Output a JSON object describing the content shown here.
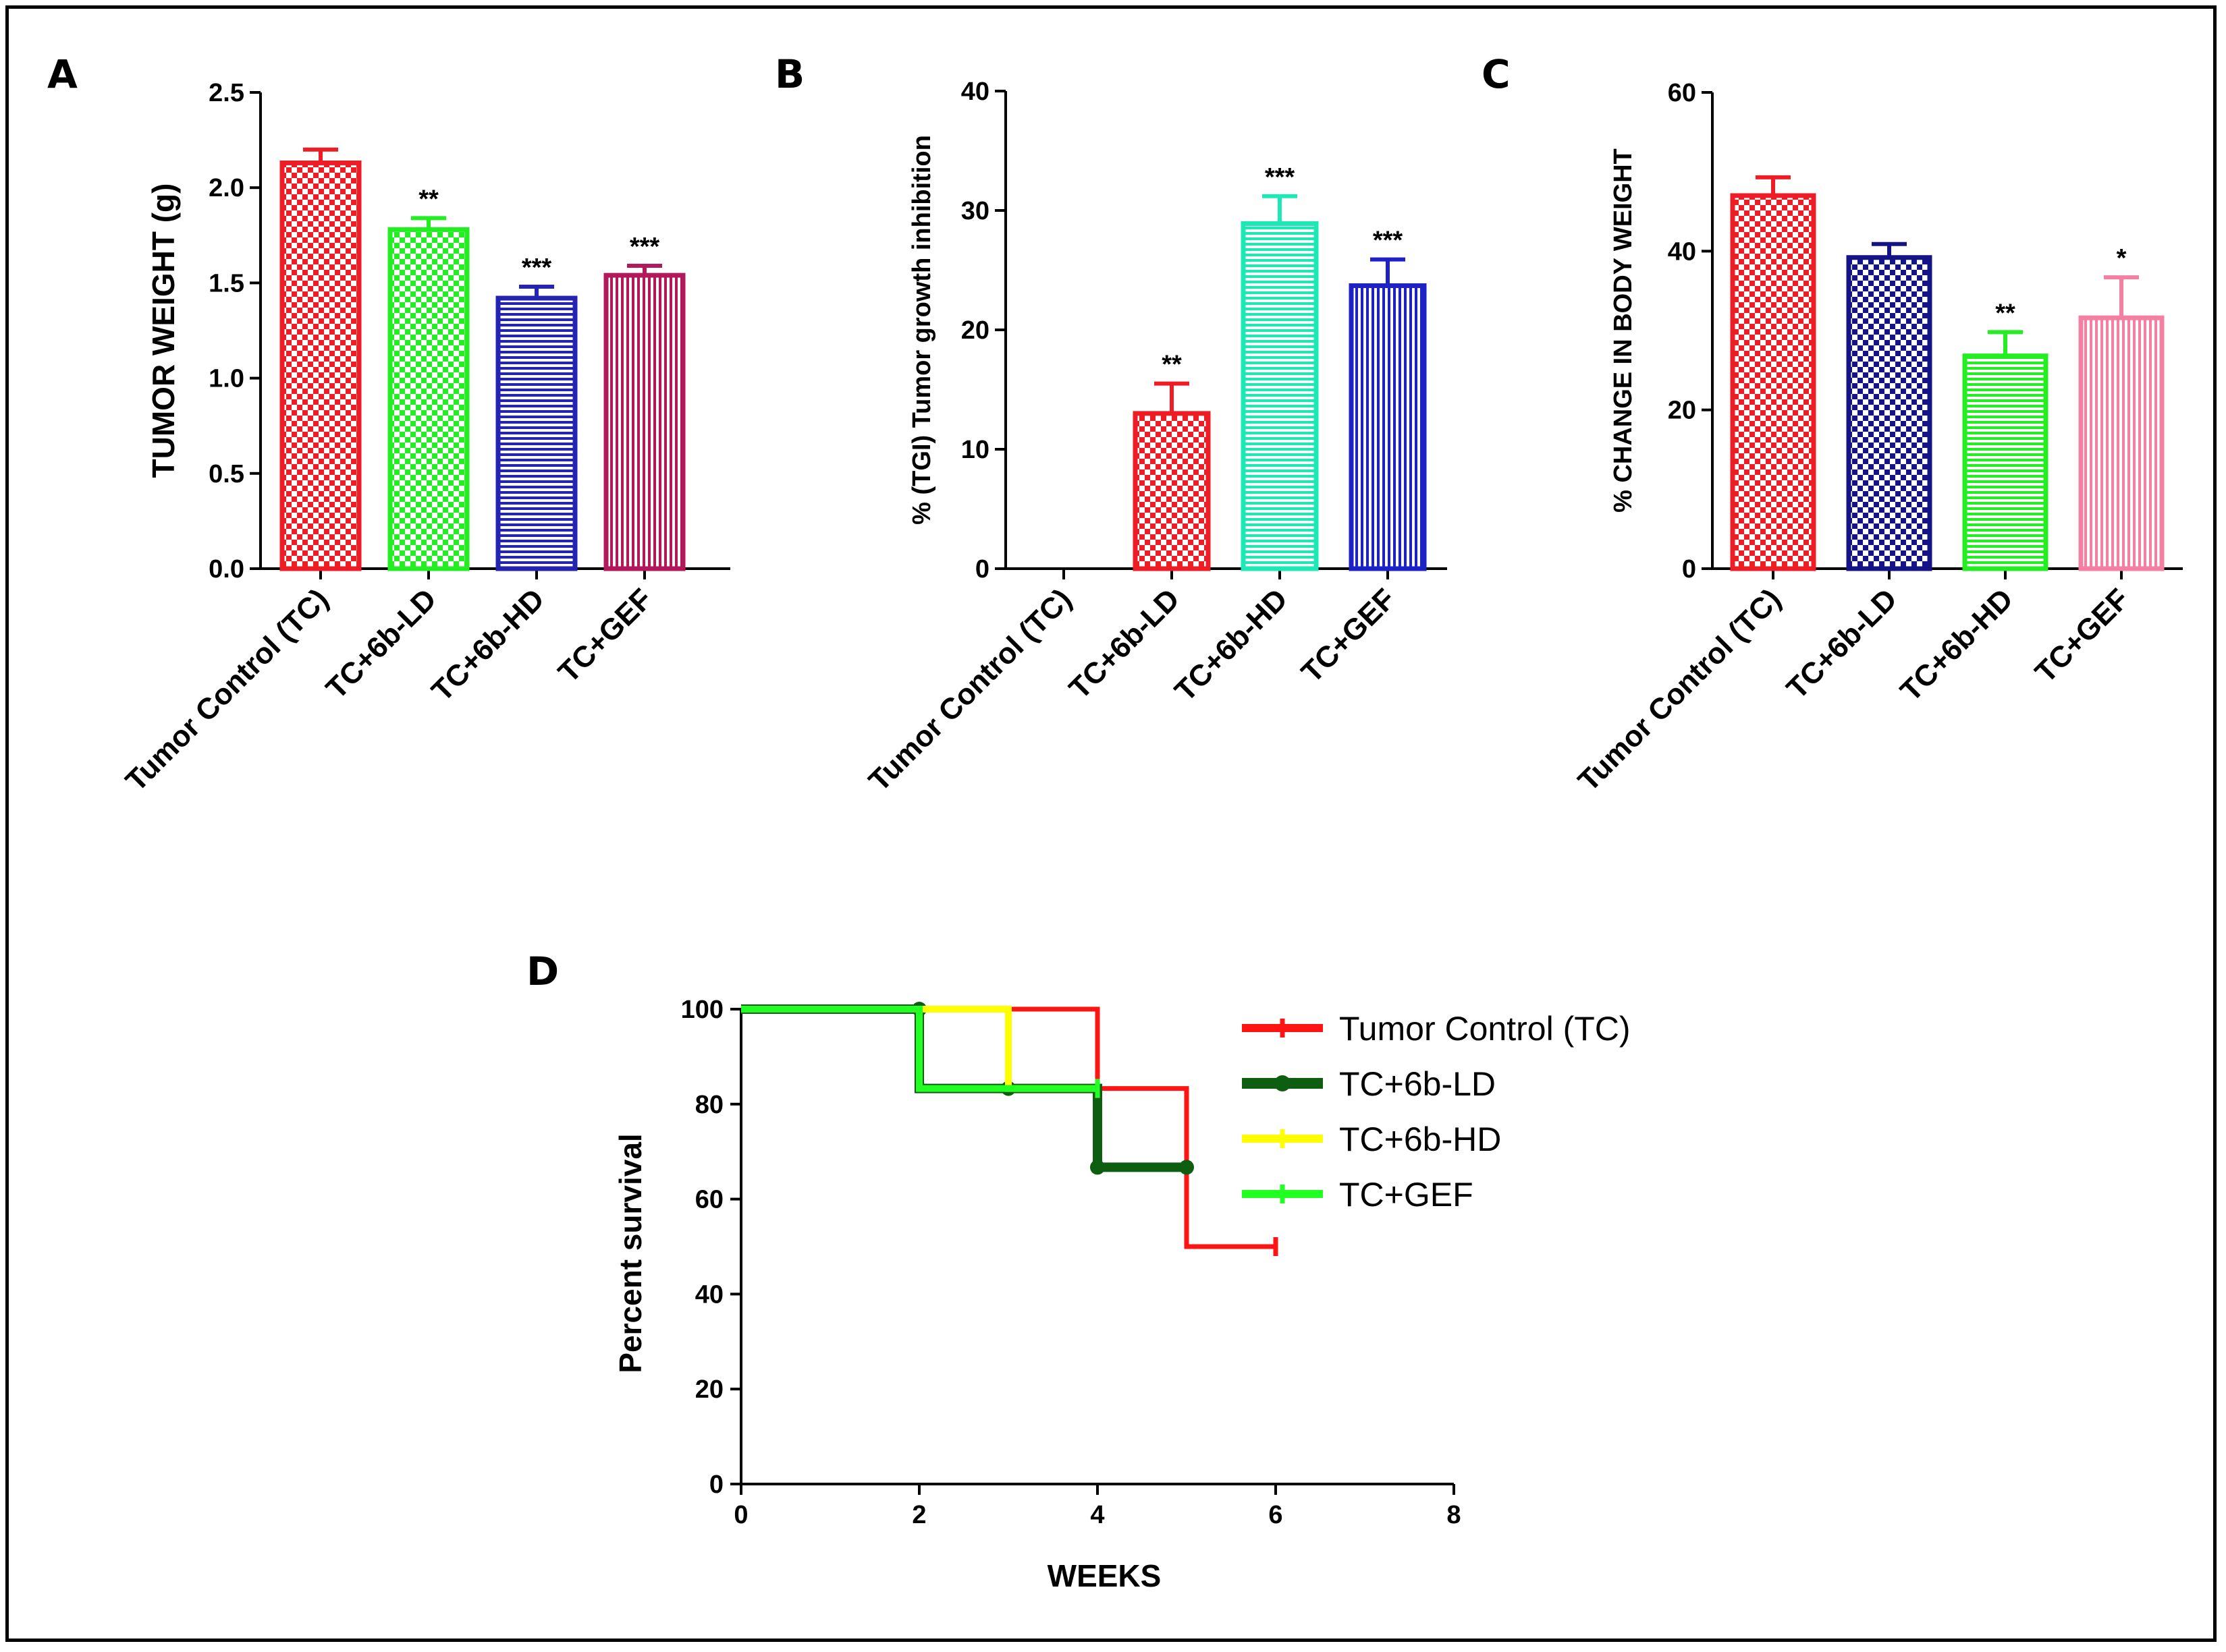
{
  "panels": {
    "A": {
      "letter": "A"
    },
    "B": {
      "letter": "B"
    },
    "C": {
      "letter": "C"
    },
    "D": {
      "letter": "D"
    }
  },
  "colors": {
    "red": "#ee1c25",
    "green": "#22ee22",
    "navy": "#2424b0",
    "maroon": "#b2185a",
    "teal": "#1de9b6",
    "blue": "#1e22c6",
    "dark_navy": "#141487",
    "pink": "#f47fa0",
    "dark_green": "#0e5e12",
    "yellow": "#ffff00",
    "km_red": "#ff1414",
    "km_green": "#22ff22"
  },
  "chart_data": [
    {
      "panel": "A",
      "type": "bar",
      "ylabel": "TUMOR WEIGHT (g)",
      "ylim": [
        0,
        2.5
      ],
      "yticks": [
        "0.0",
        "0.5",
        "1.0",
        "1.5",
        "2.0",
        "2.5"
      ],
      "categories": [
        "Tumor Control (TC)",
        "TC+6b-LD",
        "TC+6b-HD",
        "TC+GEF"
      ],
      "values": [
        2.13,
        1.78,
        1.42,
        1.54
      ],
      "errors": [
        0.07,
        0.06,
        0.06,
        0.05
      ],
      "significance": [
        "",
        "**",
        "***",
        "***"
      ],
      "patterns": [
        "checker",
        "checker",
        "horizontal",
        "vertical"
      ],
      "colors": [
        "#ee1c25",
        "#22ee22",
        "#2424b0",
        "#b2185a"
      ]
    },
    {
      "panel": "B",
      "type": "bar",
      "ylabel": "% (TGI)  Tumor growth inhibition",
      "ylim": [
        0,
        40
      ],
      "yticks": [
        "0",
        "10",
        "20",
        "30",
        "40"
      ],
      "categories": [
        "Tumor Control (TC)",
        "TC+6b-LD",
        "TC+6b-HD",
        "TC+GEF"
      ],
      "values": [
        0,
        13,
        28.9,
        23.7
      ],
      "errors": [
        0,
        2.5,
        2.3,
        2.2
      ],
      "significance": [
        "",
        "**",
        "***",
        "***"
      ],
      "patterns": [
        "none",
        "checker",
        "horizontal",
        "vertical"
      ],
      "colors": [
        "#000000",
        "#ee1c25",
        "#1de9b6",
        "#1e22c6"
      ]
    },
    {
      "panel": "C",
      "type": "bar",
      "ylabel": "% CHANGE IN BODY WEIGHT",
      "ylim": [
        0,
        60
      ],
      "yticks": [
        "0",
        "20",
        "40",
        "60"
      ],
      "categories": [
        "Tumor Control (TC)",
        "TC+6b-LD",
        "TC+6b-HD",
        "TC+GEF"
      ],
      "values": [
        47,
        39.2,
        26.8,
        31.6
      ],
      "errors": [
        2.3,
        1.7,
        3,
        5.1
      ],
      "significance": [
        "",
        "",
        "**",
        "*"
      ],
      "patterns": [
        "checker",
        "checker",
        "horizontal",
        "vertical"
      ],
      "colors": [
        "#ee1c25",
        "#141487",
        "#22ee22",
        "#f47fa0"
      ]
    },
    {
      "panel": "D",
      "type": "line",
      "subtype": "kaplan-meier",
      "xlabel": "WEEKS",
      "ylabel": "Percent survival",
      "xlim": [
        0,
        8
      ],
      "ylim": [
        0,
        100
      ],
      "xticks": [
        "0",
        "2",
        "4",
        "6",
        "8"
      ],
      "yticks": [
        "0",
        "20",
        "40",
        "60",
        "80",
        "100"
      ],
      "series": [
        {
          "name": "Tumor Control (TC)",
          "color": "#ff1414",
          "x": [
            0,
            4,
            4,
            5,
            5,
            6
          ],
          "y": [
            100,
            100,
            83.3,
            83.3,
            50,
            50
          ],
          "censor_x": [
            6
          ],
          "censor_y": [
            50
          ]
        },
        {
          "name": "TC+6b-LD",
          "color": "#0e5e12",
          "x": [
            0,
            2,
            2,
            3,
            3,
            4,
            4,
            5
          ],
          "y": [
            100,
            100,
            83.3,
            83.3,
            83.3,
            83.3,
            66.7,
            66.7
          ],
          "censor_x": [
            2,
            3,
            4,
            5
          ],
          "censor_y": [
            100,
            83.3,
            66.7,
            66.7
          ]
        },
        {
          "name": "TC+6b-HD",
          "color": "#ffff00",
          "x": [
            0,
            3,
            3,
            4
          ],
          "y": [
            100,
            100,
            83.3,
            83.3
          ],
          "censor_x": [
            4
          ],
          "censor_y": [
            83.3
          ]
        },
        {
          "name": "TC+GEF",
          "color": "#22ff22",
          "x": [
            0,
            2,
            2,
            4
          ],
          "y": [
            100,
            100,
            83.3,
            83.3
          ],
          "censor_x": [
            4
          ],
          "censor_y": [
            83.3
          ]
        }
      ]
    }
  ]
}
